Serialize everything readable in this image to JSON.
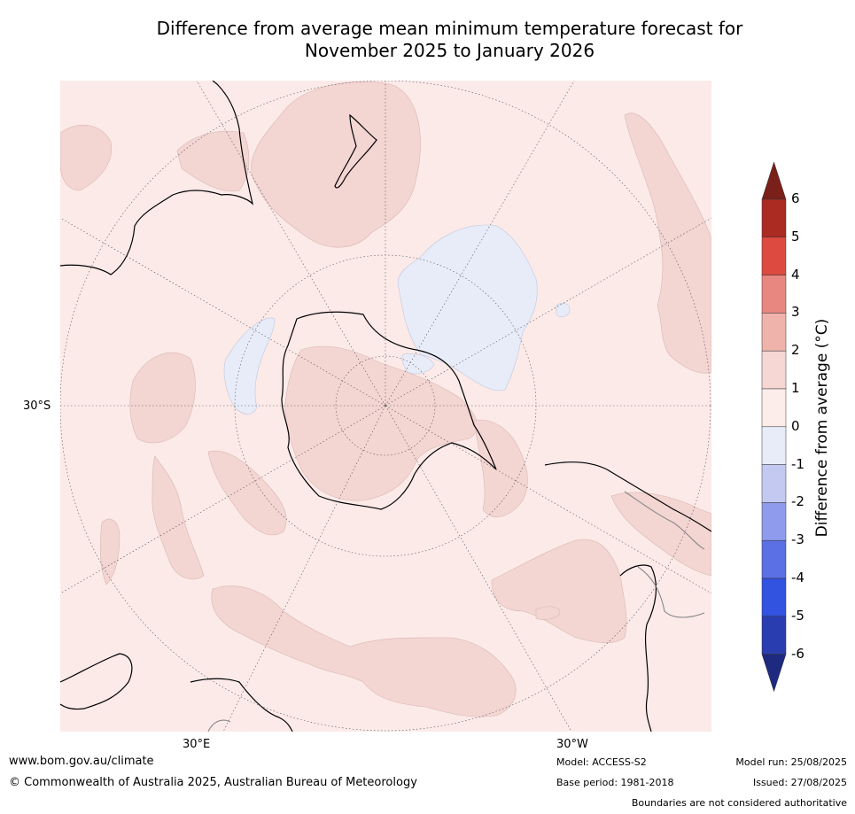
{
  "title": {
    "line1": "Difference from average mean minimum temperature forecast for",
    "line2": "November 2025 to January 2026"
  },
  "map": {
    "projection": "south polar stereographic",
    "lat_label": "30°S",
    "lon_labels": [
      "30°E",
      "30°W"
    ],
    "colors": {
      "ocean_near_avg": "#fbeae8",
      "warm_1_2": "#f3d5d2",
      "cool_0_-1": "#e8ecf8",
      "coast": "#000000",
      "border": "#888888",
      "graticule": "#555555"
    }
  },
  "colorbar": {
    "title": "Difference from average (°C)",
    "tick_labels": [
      "6",
      "5",
      "4",
      "3",
      "2",
      "1",
      "0",
      "-1",
      "-2",
      "-3",
      "-4",
      "-5",
      "-6"
    ],
    "bin_colors": [
      "#ab2a22",
      "#dc4a40",
      "#e8877f",
      "#efb3ac",
      "#f6d7d4",
      "#fcecea",
      "#e8ecf8",
      "#c3c9f0",
      "#8f9ced",
      "#5b70e4",
      "#3252e0",
      "#2a3db0"
    ],
    "over_color": "#7a1f19",
    "under_color": "#1e2a80"
  },
  "footer": {
    "website": "www.bom.gov.au/climate",
    "copyright": "© Commonwealth of Australia 2025, Australian Bureau of Meteorology",
    "model": "Model: ACCESS-S2",
    "base_period": "Base period: 1981-2018",
    "model_run": "Model run: 25/08/2025",
    "issued": "Issued: 27/08/2025",
    "disclaimer": "Boundaries are not considered authoritative"
  }
}
